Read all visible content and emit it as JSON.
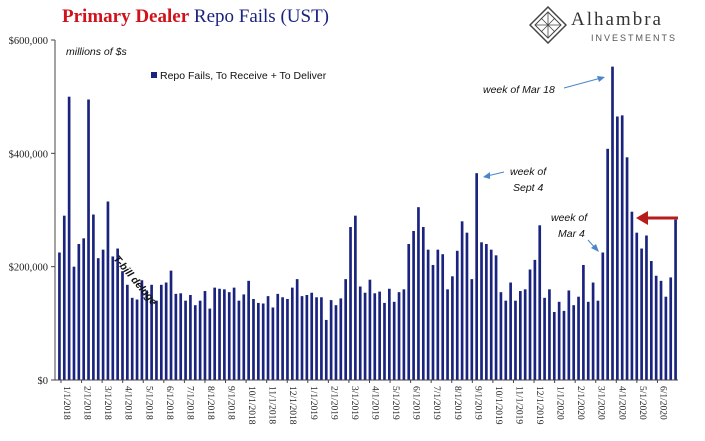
{
  "title": {
    "part1": "Primary Dealer",
    "part2": " Repo Fails (UST)"
  },
  "logo": {
    "name": "Alhambra",
    "subtitle": "INVESTMENTS",
    "icon": "diamond-logo-icon"
  },
  "units_label": "millions of $s",
  "colors": {
    "bar": "#1a237e",
    "arrow_red": "#b71c1c",
    "arrow_blue": "#4a86c8",
    "title_red": "#d0121b"
  },
  "annotations": [
    {
      "text": "T-bill deluge"
    },
    {
      "text": "week of Mar 18"
    },
    {
      "text": "week of"
    },
    {
      "text": "Sept 4"
    },
    {
      "text": "week of"
    },
    {
      "text": "Mar 4"
    }
  ],
  "chart_data": {
    "type": "bar",
    "ylim": [
      0,
      600000
    ],
    "yticks": [
      0,
      200000,
      400000,
      600000
    ],
    "ytick_labels": [
      "$0",
      "$200,000",
      "$400,000",
      "$600,000"
    ],
    "grid": false,
    "legend": {
      "position": "top-left",
      "entries": [
        "Repo Fails, To Receive + To Deliver"
      ]
    },
    "xtick_labels": [
      "1/1/2018",
      "2/1/2018",
      "3/1/2018",
      "4/1/2018",
      "5/1/2018",
      "6/1/2018",
      "7/1/2018",
      "8/1/2018",
      "9/1/2018",
      "10/1/2018",
      "11/1/2018",
      "12/1/2018",
      "1/1/2019",
      "2/1/2019",
      "3/1/2019",
      "4/1/2019",
      "5/1/2019",
      "6/1/2019",
      "7/1/2019",
      "8/1/2019",
      "9/1/2019",
      "10/1/2019",
      "11/1/2019",
      "12/1/2019",
      "1/1/2020",
      "2/1/2020",
      "3/1/2020",
      "4/1/2020",
      "5/1/2020",
      "6/1/2020"
    ],
    "series": [
      {
        "name": "Repo Fails, To Receive + To Deliver",
        "values": [
          225000,
          290000,
          500000,
          200000,
          240000,
          250000,
          495000,
          292000,
          215000,
          230000,
          315000,
          218000,
          232000,
          192000,
          168000,
          145000,
          142000,
          176000,
          158000,
          168000,
          140000,
          168000,
          172000,
          193000,
          152000,
          153000,
          140000,
          150000,
          132000,
          140000,
          157000,
          126000,
          163000,
          161000,
          160000,
          155000,
          163000,
          140000,
          151000,
          175000,
          143000,
          136000,
          135000,
          148000,
          128000,
          152000,
          146000,
          143000,
          163000,
          178000,
          148000,
          150000,
          154000,
          146000,
          146000,
          106000,
          141000,
          132000,
          144000,
          178000,
          270000,
          290000,
          165000,
          154000,
          177000,
          153000,
          156000,
          136000,
          161000,
          138000,
          155000,
          160000,
          240000,
          263000,
          305000,
          270000,
          230000,
          203000,
          230000,
          222000,
          160000,
          183000,
          228000,
          280000,
          260000,
          178000,
          365000,
          243000,
          240000,
          230000,
          220000,
          155000,
          140000,
          172000,
          140000,
          157000,
          160000,
          195000,
          212000,
          273000,
          145000,
          160000,
          120000,
          138000,
          122000,
          158000,
          132000,
          147000,
          203000,
          138000,
          172000,
          140000,
          225000,
          408000,
          553000,
          465000,
          467000,
          393000,
          297000,
          260000,
          232000,
          255000,
          210000,
          184000,
          175000,
          147000,
          181000,
          283000
        ]
      }
    ]
  }
}
